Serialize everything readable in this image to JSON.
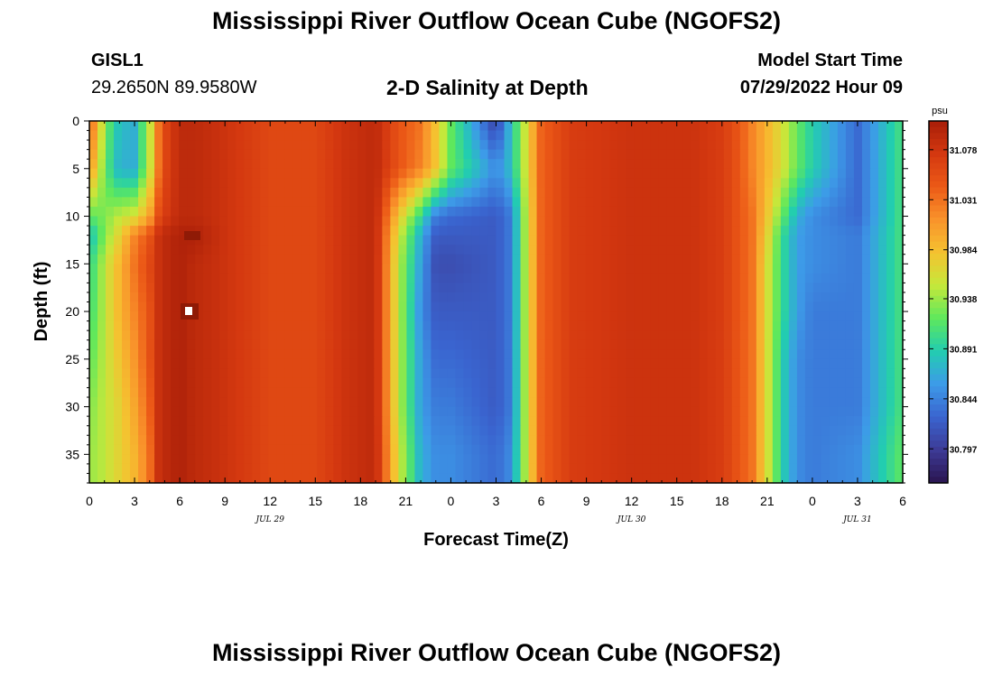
{
  "header": {
    "title": "Mississippi River Outflow Ocean Cube (NGOFS2)",
    "station_id": "GISL1",
    "station_coords": "29.2650N  89.9580W",
    "plot_subtitle": "2-D Salinity at Depth",
    "model_start_label": "Model Start Time",
    "model_start_value": "07/29/2022 Hour 09"
  },
  "footer": {
    "title": "Mississippi River Outflow Ocean Cube (NGOFS2)"
  },
  "colorbar": {
    "unit": "psu",
    "ticks": [
      "31.078",
      "31.031",
      "30.984",
      "30.938",
      "30.891",
      "30.844",
      "30.797"
    ],
    "tick_values": [
      31.078,
      31.031,
      30.984,
      30.938,
      30.891,
      30.844,
      30.797
    ],
    "vmin": 30.765,
    "vmax": 31.105,
    "colors": [
      "#2a1450",
      "#3d3b96",
      "#3a64cf",
      "#3d9be8",
      "#22cdb0",
      "#5fe85c",
      "#c5e83b",
      "#f5c230",
      "#f9932b",
      "#ec5a17",
      "#d43810",
      "#a81e08"
    ]
  },
  "chart_data": {
    "type": "heatmap",
    "xlabel": "Forecast Time(Z)",
    "ylabel": "Depth (ft)",
    "x_tick_labels": [
      "0",
      "3",
      "6",
      "9",
      "12",
      "15",
      "18",
      "21",
      "0",
      "3",
      "6",
      "9",
      "12",
      "15",
      "18",
      "21",
      "0",
      "3",
      "6"
    ],
    "x_tick_hours": [
      0,
      3,
      6,
      9,
      12,
      15,
      18,
      21,
      24,
      27,
      30,
      33,
      36,
      39,
      42,
      45,
      48,
      51,
      54
    ],
    "date_labels": [
      {
        "text": "JUL 29",
        "hour": 12
      },
      {
        "text": "JUL 30",
        "hour": 36
      },
      {
        "text": "JUL 31",
        "hour": 51
      }
    ],
    "x_range": [
      0,
      54
    ],
    "y_tick_labels": [
      "0",
      "5",
      "10",
      "15",
      "20",
      "25",
      "30",
      "35"
    ],
    "y_tick_values": [
      0,
      5,
      10,
      15,
      20,
      25,
      30,
      35
    ],
    "y_range": [
      0,
      38
    ],
    "y_inverted": true,
    "unit": "psu",
    "time_hours": [
      0,
      0.5,
      1,
      2,
      3,
      4,
      4.5,
      5,
      6,
      7,
      9,
      12,
      15,
      17,
      19,
      20.5,
      22,
      23,
      24,
      27,
      28,
      29,
      30,
      32,
      36,
      40,
      42,
      43,
      44,
      45,
      46,
      47,
      48,
      51,
      54
    ],
    "depth_ft": [
      0,
      5,
      10,
      12,
      15,
      20,
      25,
      30,
      35,
      38
    ],
    "salinity": [
      [
        31.03,
        31.01,
        30.93,
        30.88,
        30.87,
        30.95,
        31.02,
        31.06,
        31.09,
        31.09,
        31.08,
        31.06,
        31.06,
        31.08,
        31.09,
        31.05,
        31.03,
        30.98,
        30.92,
        30.8,
        30.88,
        30.96,
        31.04,
        31.07,
        31.08,
        31.08,
        31.07,
        31.05,
        31.02,
        30.99,
        30.96,
        30.92,
        30.89,
        30.83,
        30.91
      ],
      [
        31.0,
        30.98,
        30.92,
        30.87,
        30.87,
        30.95,
        31.02,
        31.06,
        31.09,
        31.09,
        31.08,
        31.06,
        31.06,
        31.08,
        31.09,
        31.05,
        31.02,
        30.98,
        30.92,
        30.85,
        30.88,
        30.96,
        31.04,
        31.07,
        31.08,
        31.08,
        31.07,
        31.05,
        31.02,
        30.99,
        30.96,
        30.92,
        30.89,
        30.83,
        30.91
      ],
      [
        30.92,
        30.92,
        30.93,
        30.95,
        30.96,
        31.0,
        31.05,
        31.07,
        31.09,
        31.09,
        31.08,
        31.06,
        31.06,
        31.08,
        31.09,
        30.98,
        30.9,
        30.84,
        30.83,
        30.82,
        30.84,
        30.95,
        31.04,
        31.07,
        31.08,
        31.08,
        31.07,
        31.05,
        31.03,
        30.98,
        30.92,
        30.87,
        30.85,
        30.83,
        30.91
      ],
      [
        30.88,
        30.9,
        30.93,
        30.97,
        31.02,
        31.05,
        31.08,
        31.09,
        31.1,
        31.1,
        31.08,
        31.06,
        31.06,
        31.08,
        31.09,
        30.96,
        30.87,
        30.82,
        30.82,
        30.82,
        30.84,
        30.95,
        31.04,
        31.07,
        31.08,
        31.08,
        31.07,
        31.05,
        31.03,
        30.97,
        30.9,
        30.86,
        30.85,
        30.84,
        30.91
      ],
      [
        30.9,
        30.92,
        30.95,
        30.99,
        31.03,
        31.06,
        31.08,
        31.09,
        31.1,
        31.09,
        31.08,
        31.06,
        31.06,
        31.08,
        31.09,
        30.95,
        30.86,
        30.81,
        30.81,
        30.82,
        30.84,
        30.95,
        31.04,
        31.07,
        31.08,
        31.08,
        31.07,
        31.05,
        31.03,
        30.96,
        30.9,
        30.86,
        30.85,
        30.84,
        30.91
      ],
      [
        30.91,
        30.92,
        30.95,
        30.99,
        31.02,
        31.05,
        31.08,
        31.09,
        31.1,
        31.09,
        31.08,
        31.06,
        31.06,
        31.08,
        31.09,
        30.95,
        30.85,
        30.82,
        30.82,
        30.82,
        30.84,
        30.95,
        31.04,
        31.07,
        31.08,
        31.08,
        31.07,
        31.05,
        31.03,
        30.96,
        30.9,
        30.86,
        30.84,
        30.84,
        30.91
      ],
      [
        30.92,
        30.93,
        30.95,
        30.98,
        31.01,
        31.05,
        31.08,
        31.09,
        31.1,
        31.09,
        31.08,
        31.06,
        31.06,
        31.08,
        31.09,
        30.95,
        30.86,
        30.83,
        30.83,
        30.82,
        30.84,
        30.95,
        31.04,
        31.07,
        31.08,
        31.08,
        31.07,
        31.05,
        31.03,
        30.96,
        30.89,
        30.85,
        30.84,
        30.84,
        30.91
      ],
      [
        30.93,
        30.94,
        30.95,
        30.97,
        31.0,
        31.04,
        31.08,
        31.09,
        31.1,
        31.09,
        31.08,
        31.06,
        31.06,
        31.08,
        31.09,
        30.95,
        30.86,
        30.84,
        30.84,
        30.82,
        30.84,
        30.95,
        31.04,
        31.07,
        31.08,
        31.08,
        31.07,
        31.05,
        31.03,
        30.96,
        30.89,
        30.85,
        30.84,
        30.84,
        30.91
      ],
      [
        30.94,
        30.94,
        30.95,
        30.97,
        30.99,
        31.03,
        31.08,
        31.09,
        31.1,
        31.09,
        31.08,
        31.06,
        31.06,
        31.08,
        31.09,
        30.96,
        30.87,
        30.85,
        30.85,
        30.83,
        30.85,
        30.95,
        31.04,
        31.07,
        31.08,
        31.08,
        31.07,
        31.05,
        31.03,
        30.96,
        30.89,
        30.85,
        30.84,
        30.85,
        30.92
      ],
      [
        30.94,
        30.94,
        30.95,
        30.97,
        30.99,
        31.03,
        31.08,
        31.09,
        31.1,
        31.09,
        31.08,
        31.06,
        31.06,
        31.08,
        31.09,
        30.96,
        30.87,
        30.85,
        30.85,
        30.83,
        30.85,
        30.95,
        31.04,
        31.07,
        31.08,
        31.08,
        31.07,
        31.05,
        31.03,
        30.96,
        30.89,
        30.85,
        30.84,
        30.85,
        30.92
      ]
    ]
  }
}
